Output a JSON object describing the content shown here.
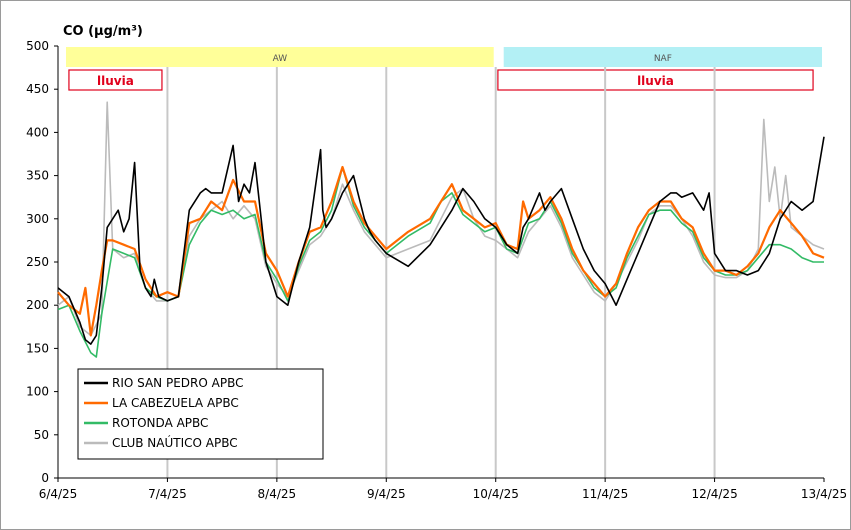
{
  "chart_data": {
    "type": "line",
    "title": "CO (µg/m³)",
    "ylabel": "",
    "xlabel": "",
    "ylim": [
      0,
      500
    ],
    "yticks": [
      0,
      50,
      100,
      150,
      200,
      250,
      300,
      350,
      400,
      450,
      500
    ],
    "xrange": [
      "6/4/25",
      "13/4/25"
    ],
    "xticks": [
      "6/4/25",
      "7/4/25",
      "8/4/25",
      "9/4/25",
      "10/4/25",
      "11/4/25",
      "12/4/25",
      "13/4/25"
    ],
    "grid": "vertical",
    "legend": "bottom-left",
    "bands": [
      {
        "label": "AW",
        "from": 0,
        "to": 4,
        "color": "#ffff99"
      },
      {
        "label": "NAF",
        "from": 4,
        "to": 7,
        "color": "#b3f0f5"
      }
    ],
    "rain": [
      {
        "label": "lluvia",
        "from": 0.1,
        "to": 0.95
      },
      {
        "label": "lluvia",
        "from": 4.02,
        "to": 6.9
      }
    ],
    "series": [
      {
        "name": "RIO SAN PEDRO APBC",
        "color": "#000000",
        "x": [
          0,
          0.1,
          0.2,
          0.25,
          0.3,
          0.35,
          0.4,
          0.45,
          0.5,
          0.55,
          0.6,
          0.65,
          0.7,
          0.75,
          0.8,
          0.85,
          0.88,
          0.92,
          1.0,
          1.1,
          1.2,
          1.3,
          1.35,
          1.4,
          1.5,
          1.6,
          1.65,
          1.7,
          1.75,
          1.8,
          1.9,
          1.95,
          2.0,
          2.1,
          2.2,
          2.3,
          2.4,
          2.42,
          2.45,
          2.5,
          2.6,
          2.7,
          2.8,
          2.85,
          2.9,
          3.0,
          3.2,
          3.4,
          3.5,
          3.6,
          3.7,
          3.8,
          3.9,
          4.0,
          4.1,
          4.2,
          4.25,
          4.3,
          4.4,
          4.45,
          4.5,
          4.6,
          4.7,
          4.8,
          4.9,
          5.0,
          5.1,
          5.2,
          5.3,
          5.4,
          5.5,
          5.6,
          5.65,
          5.7,
          5.8,
          5.9,
          5.95,
          6.0,
          6.1,
          6.2,
          6.3,
          6.4,
          6.5,
          6.6,
          6.7,
          6.8,
          6.9,
          7.0
        ],
        "values": [
          220,
          210,
          180,
          160,
          155,
          165,
          220,
          290,
          300,
          310,
          285,
          300,
          365,
          240,
          220,
          210,
          230,
          210,
          205,
          210,
          310,
          330,
          335,
          330,
          330,
          385,
          320,
          340,
          330,
          365,
          250,
          230,
          210,
          200,
          250,
          290,
          380,
          310,
          290,
          300,
          330,
          350,
          300,
          285,
          275,
          260,
          245,
          270,
          290,
          310,
          335,
          320,
          300,
          290,
          270,
          260,
          290,
          300,
          330,
          310,
          320,
          335,
          300,
          265,
          240,
          225,
          200,
          230,
          260,
          290,
          320,
          330,
          330,
          325,
          330,
          310,
          330,
          260,
          240,
          240,
          235,
          240,
          260,
          300,
          320,
          310,
          320,
          395
        ]
      },
      {
        "name": "LA CABEZUELA  APBC",
        "color": "#ff6a00",
        "x": [
          0,
          0.1,
          0.2,
          0.25,
          0.3,
          0.35,
          0.4,
          0.45,
          0.5,
          0.6,
          0.7,
          0.8,
          0.9,
          1.0,
          1.1,
          1.2,
          1.3,
          1.4,
          1.5,
          1.6,
          1.7,
          1.8,
          1.9,
          2.0,
          2.1,
          2.2,
          2.3,
          2.4,
          2.5,
          2.6,
          2.7,
          2.8,
          2.9,
          3.0,
          3.2,
          3.4,
          3.5,
          3.6,
          3.7,
          3.8,
          3.9,
          4.0,
          4.1,
          4.2,
          4.25,
          4.3,
          4.4,
          4.5,
          4.6,
          4.7,
          4.8,
          4.9,
          5.0,
          5.1,
          5.2,
          5.3,
          5.4,
          5.5,
          5.6,
          5.7,
          5.8,
          5.9,
          6.0,
          6.1,
          6.2,
          6.3,
          6.4,
          6.5,
          6.6,
          6.7,
          6.8,
          6.9,
          7.0
        ],
        "values": [
          215,
          200,
          190,
          220,
          165,
          200,
          240,
          275,
          275,
          270,
          265,
          230,
          210,
          215,
          210,
          295,
          300,
          320,
          310,
          345,
          320,
          320,
          260,
          240,
          210,
          250,
          285,
          290,
          320,
          360,
          320,
          295,
          280,
          265,
          285,
          300,
          320,
          340,
          310,
          300,
          290,
          295,
          270,
          265,
          320,
          300,
          310,
          325,
          300,
          265,
          240,
          225,
          210,
          225,
          260,
          290,
          310,
          320,
          320,
          300,
          290,
          260,
          240,
          240,
          235,
          245,
          260,
          290,
          310,
          295,
          280,
          260,
          255
        ]
      },
      {
        "name": "ROTONDA  APBC",
        "color": "#33bb66",
        "x": [
          0,
          0.1,
          0.2,
          0.3,
          0.35,
          0.4,
          0.5,
          0.6,
          0.7,
          0.8,
          0.9,
          1.0,
          1.1,
          1.2,
          1.3,
          1.4,
          1.5,
          1.6,
          1.7,
          1.8,
          1.9,
          2.0,
          2.1,
          2.2,
          2.3,
          2.4,
          2.5,
          2.6,
          2.7,
          2.8,
          2.9,
          3.0,
          3.2,
          3.4,
          3.5,
          3.6,
          3.7,
          3.8,
          3.9,
          4.0,
          4.1,
          4.2,
          4.3,
          4.4,
          4.5,
          4.6,
          4.7,
          4.8,
          4.9,
          5.0,
          5.1,
          5.2,
          5.3,
          5.4,
          5.5,
          5.6,
          5.7,
          5.8,
          5.9,
          6.0,
          6.1,
          6.2,
          6.3,
          6.4,
          6.5,
          6.6,
          6.7,
          6.8,
          6.9,
          7.0
        ],
        "values": [
          195,
          200,
          170,
          145,
          140,
          190,
          265,
          260,
          255,
          220,
          210,
          205,
          210,
          270,
          295,
          310,
          305,
          310,
          300,
          305,
          250,
          230,
          205,
          245,
          275,
          285,
          310,
          360,
          315,
          290,
          275,
          260,
          280,
          295,
          320,
          330,
          305,
          295,
          285,
          290,
          265,
          260,
          295,
          300,
          320,
          295,
          260,
          240,
          220,
          210,
          220,
          255,
          280,
          305,
          310,
          310,
          295,
          285,
          255,
          240,
          235,
          235,
          240,
          255,
          270,
          270,
          265,
          255,
          250,
          250
        ]
      },
      {
        "name": "CLUB NAÚTICO  APBC",
        "color": "#bbbbbb",
        "x": [
          0,
          0.1,
          0.2,
          0.3,
          0.4,
          0.45,
          0.5,
          0.6,
          0.7,
          0.8,
          0.9,
          1.0,
          1.1,
          1.2,
          1.3,
          1.4,
          1.5,
          1.6,
          1.7,
          1.8,
          1.9,
          2.0,
          2.1,
          2.2,
          2.3,
          2.4,
          2.5,
          2.6,
          2.7,
          2.8,
          2.9,
          3.0,
          3.2,
          3.4,
          3.5,
          3.6,
          3.7,
          3.8,
          3.9,
          4.0,
          4.1,
          4.2,
          4.3,
          4.4,
          4.5,
          4.6,
          4.7,
          4.8,
          4.9,
          5.0,
          5.1,
          5.2,
          5.3,
          5.4,
          5.5,
          5.6,
          5.7,
          5.8,
          5.9,
          6.0,
          6.1,
          6.2,
          6.3,
          6.4,
          6.45,
          6.5,
          6.55,
          6.6,
          6.65,
          6.7,
          6.8,
          6.9,
          7.0
        ],
        "values": [
          200,
          210,
          175,
          165,
          190,
          435,
          265,
          255,
          260,
          220,
          205,
          205,
          210,
          280,
          300,
          310,
          320,
          300,
          315,
          300,
          245,
          225,
          210,
          240,
          270,
          280,
          300,
          340,
          310,
          285,
          270,
          255,
          265,
          275,
          300,
          325,
          335,
          300,
          280,
          275,
          265,
          255,
          285,
          300,
          315,
          290,
          255,
          235,
          215,
          205,
          225,
          250,
          275,
          305,
          315,
          315,
          300,
          280,
          250,
          235,
          232,
          232,
          240,
          265,
          415,
          320,
          360,
          300,
          350,
          290,
          280,
          270,
          265
        ]
      }
    ]
  }
}
